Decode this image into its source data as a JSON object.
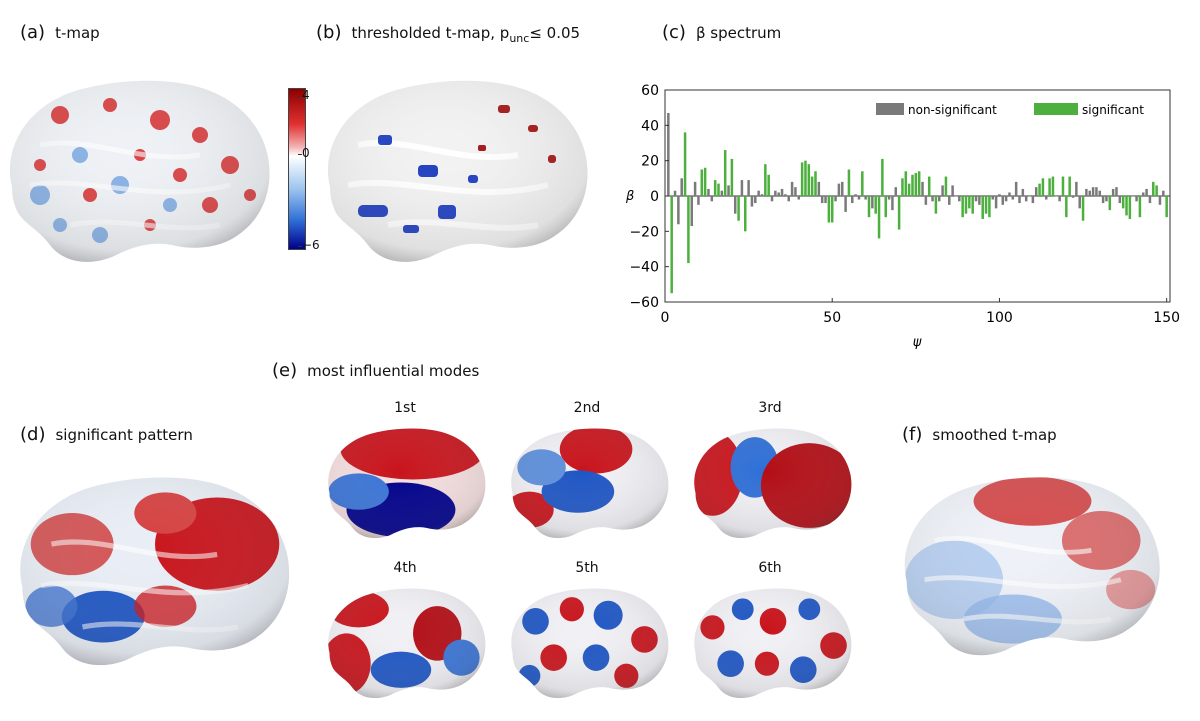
{
  "panels": {
    "a": {
      "letter": "(a)",
      "title": "t-map"
    },
    "b": {
      "letter": "(b)",
      "title_main": "thresholded t-map, p",
      "title_sub": "unc",
      "title_end": "≤ 0.05"
    },
    "c": {
      "letter": "(c)",
      "title": "β spectrum"
    },
    "d": {
      "letter": "(d)",
      "title": "significant pattern"
    },
    "e": {
      "letter": "(e)",
      "title": "most influential modes",
      "modes": [
        "1st",
        "2nd",
        "3rd",
        "4th",
        "5th",
        "6th"
      ]
    },
    "f": {
      "letter": "(f)",
      "title": "smoothed t-map"
    }
  },
  "colorbar": {
    "max_label": "4",
    "mid_label": "0",
    "min_label": "−6",
    "colors": [
      "#8b0000",
      "#e23030",
      "#ffffff",
      "#2f6fd6",
      "#00008b"
    ]
  },
  "colors": {
    "significant": "#4caf3e",
    "non_significant": "#7a7a7a",
    "red": "#c8141c",
    "blue": "#1f56c4",
    "dark_blue": "#00008b"
  },
  "chart_data": {
    "type": "bar",
    "title": "β spectrum",
    "xlabel": "ψ",
    "ylabel": "β",
    "xlim": [
      0,
      151
    ],
    "ylim": [
      -60,
      60
    ],
    "xticks": [
      0,
      50,
      100,
      150
    ],
    "yticks": [
      -60,
      -40,
      -20,
      0,
      20,
      40,
      60
    ],
    "legend": {
      "position": "top-right",
      "entries": [
        "non-significant",
        "significant"
      ]
    },
    "series": [
      {
        "name": "beta",
        "x_start": 1,
        "values": [
          47,
          -55,
          3,
          -16,
          10,
          36,
          -38,
          -17,
          8,
          -5,
          15,
          16,
          4,
          -3,
          9,
          7,
          3,
          26,
          6,
          21,
          -10,
          -14,
          9,
          -20,
          9,
          -6,
          -4,
          3,
          1,
          18,
          12,
          -3,
          3,
          2,
          4,
          1,
          -3,
          8,
          5,
          -2,
          19,
          20,
          18,
          11,
          14,
          8,
          -4,
          -4,
          -15,
          -15,
          -3,
          7,
          8,
          -9,
          15,
          -4,
          1,
          -2,
          14,
          -2,
          -12,
          -7,
          -10,
          -24,
          21,
          -12,
          -2,
          -8,
          5,
          -19,
          10,
          14,
          7,
          12,
          13,
          14,
          8,
          -5,
          11,
          -3,
          -10,
          -3,
          6,
          11,
          -5,
          6,
          0,
          -3,
          -12,
          -10,
          -7,
          -10,
          -3,
          -5,
          -13,
          -10,
          -12,
          -2,
          -7,
          1,
          -5,
          -3,
          2,
          -2,
          8,
          -4,
          4,
          -3,
          0,
          -4,
          5,
          7,
          10,
          -2,
          10,
          11,
          0,
          -3,
          11,
          -12,
          11,
          -1,
          8,
          -7,
          -14,
          4,
          3,
          5,
          5,
          3,
          -4,
          -3,
          -8,
          4,
          5,
          -4,
          -7,
          -11,
          -13,
          0,
          -3,
          -12,
          2,
          4,
          -4,
          8,
          6,
          -5,
          3,
          -12
        ]
      },
      {
        "name": "significant_mask",
        "x_start": 1,
        "values": [
          0,
          1,
          0,
          0,
          0,
          1,
          1,
          0,
          0,
          0,
          1,
          1,
          0,
          0,
          1,
          1,
          0,
          1,
          0,
          1,
          0,
          1,
          0,
          1,
          0,
          0,
          0,
          0,
          0,
          1,
          1,
          0,
          0,
          0,
          0,
          0,
          0,
          0,
          0,
          0,
          1,
          1,
          1,
          1,
          1,
          0,
          0,
          0,
          1,
          1,
          0,
          0,
          0,
          0,
          1,
          0,
          0,
          0,
          1,
          0,
          1,
          0,
          1,
          1,
          1,
          1,
          0,
          0,
          0,
          1,
          1,
          1,
          1,
          1,
          1,
          1,
          0,
          0,
          1,
          0,
          1,
          0,
          0,
          1,
          0,
          0,
          0,
          0,
          1,
          1,
          1,
          1,
          0,
          0,
          1,
          1,
          1,
          0,
          0,
          0,
          0,
          0,
          0,
          0,
          0,
          0,
          0,
          0,
          0,
          0,
          0,
          1,
          1,
          0,
          1,
          1,
          0,
          0,
          1,
          1,
          1,
          0,
          0,
          0,
          1,
          0,
          0,
          0,
          0,
          0,
          0,
          0,
          1,
          0,
          0,
          0,
          1,
          1,
          1,
          0,
          0,
          1,
          0,
          0,
          0,
          1,
          1,
          0,
          0,
          1
        ]
      }
    ]
  }
}
